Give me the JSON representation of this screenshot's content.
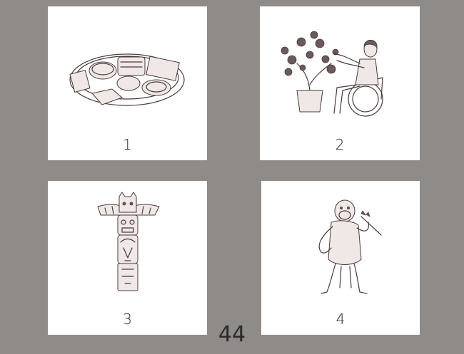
{
  "cards": [
    {
      "number": "1",
      "image": "plate-of-food"
    },
    {
      "number": "2",
      "image": "person-in-wheelchair-pruning-bonsai"
    },
    {
      "number": "3",
      "image": "totem-pole"
    },
    {
      "number": "4",
      "image": "chimpanzee-holding-twig"
    }
  ],
  "page_number": "44",
  "colors": {
    "background": "#8f8b88",
    "card": "#ffffff",
    "ink": "#4a3b3b"
  }
}
